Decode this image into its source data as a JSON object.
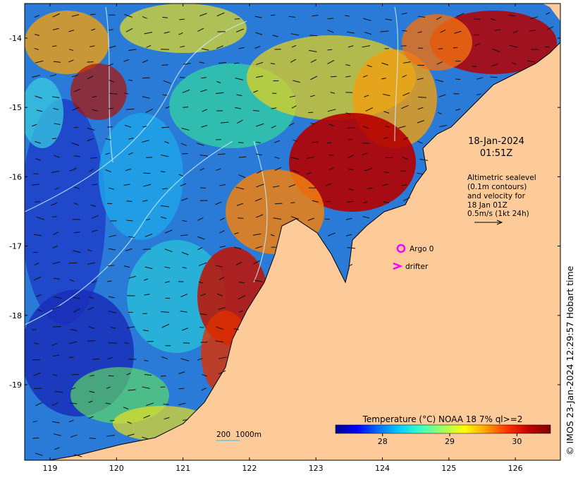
{
  "timestamp": {
    "date": "18-Jan-2024",
    "time": "01:51Z"
  },
  "altimetry_note": [
    "Altimetric sealevel",
    "(0.1m contours)",
    "and velocity for",
    "18 Jan 01Z",
    "0.5m/s (1kt 24h)"
  ],
  "legend": {
    "argo_label": "Argo 0",
    "drifter_label": "drifter",
    "argo_color": "#ff00ff",
    "drifter_color": "#ff00ff"
  },
  "colorbar": {
    "title": "Temperature (°C) NOAA 18 7% ql>=2",
    "ticks": [
      "28",
      "29",
      "30"
    ],
    "min": 27.3,
    "max": 30.5,
    "colors": [
      "#00008f",
      "#0000ff",
      "#0070ff",
      "#00d0ff",
      "#40ffc0",
      "#a0ff60",
      "#ffff00",
      "#ffa000",
      "#ff3000",
      "#c00000",
      "#800000"
    ]
  },
  "scale_bar": {
    "label_a": "200",
    "label_b": "1000m"
  },
  "axes": {
    "lon_ticks": [
      "119",
      "120",
      "121",
      "122",
      "123",
      "124",
      "125",
      "126"
    ],
    "lat_ticks": [
      "-14",
      "-15",
      "-16",
      "-17",
      "-18",
      "-19"
    ]
  },
  "credit": "© IMOS 23-Jan-2024 12:29:57 Hobart time",
  "colors": {
    "land": "#fdcb9a",
    "coast": "#000000"
  }
}
